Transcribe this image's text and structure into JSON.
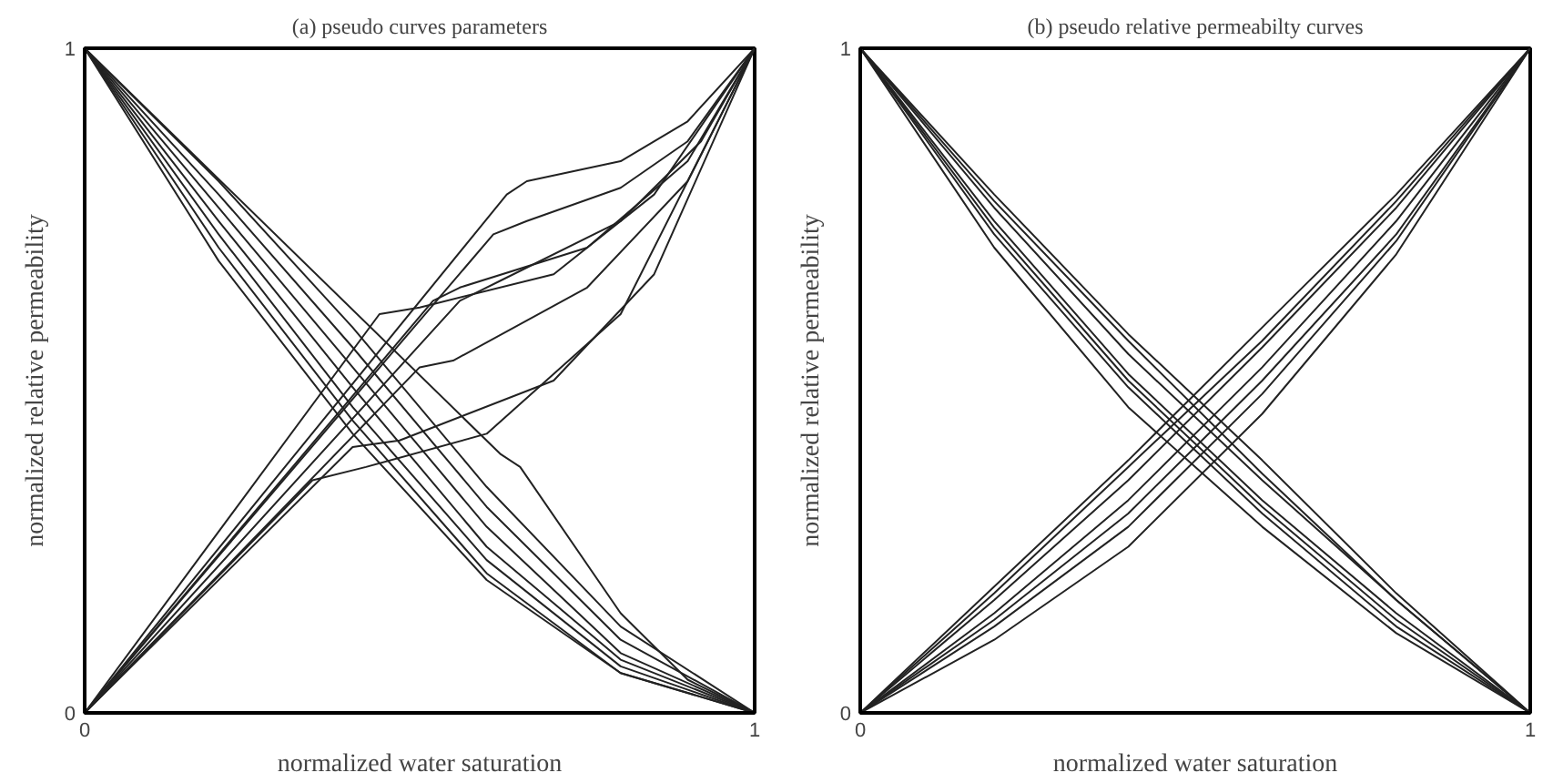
{
  "chart_data": [
    {
      "type": "line",
      "title": "(a) pseudo curves parameters",
      "xlabel": "normalized water saturation",
      "ylabel": "normalized relative permeability",
      "xlim": [
        0,
        1
      ],
      "ylim": [
        0,
        1
      ],
      "xticks": [
        0,
        1
      ],
      "yticks": [
        0,
        1
      ],
      "series": [
        {
          "color": "#222222",
          "x": [
            0,
            0.63,
            0.66,
            0.8,
            0.9,
            1
          ],
          "values": [
            0,
            0.78,
            0.8,
            0.83,
            0.89,
            1
          ]
        },
        {
          "color": "#222222",
          "x": [
            0,
            0.61,
            0.66,
            0.8,
            0.9,
            1
          ],
          "values": [
            0,
            0.72,
            0.74,
            0.79,
            0.86,
            1
          ]
        },
        {
          "color": "#222222",
          "x": [
            0,
            0.52,
            0.56,
            0.75,
            0.9,
            1
          ],
          "values": [
            0,
            0.62,
            0.64,
            0.7,
            0.83,
            1
          ]
        },
        {
          "color": "#222222",
          "x": [
            0,
            0.44,
            0.5,
            0.7,
            0.85,
            1
          ],
          "values": [
            0,
            0.6,
            0.61,
            0.66,
            0.78,
            1
          ]
        },
        {
          "color": "#222222",
          "x": [
            0,
            0.34,
            0.42,
            0.6,
            0.8,
            1
          ],
          "values": [
            0,
            0.35,
            0.37,
            0.42,
            0.6,
            1
          ]
        },
        {
          "color": "#222222",
          "x": [
            0,
            0.4,
            0.47,
            0.7,
            0.85,
            1
          ],
          "values": [
            0,
            0.4,
            0.41,
            0.5,
            0.66,
            1
          ]
        },
        {
          "color": "#222222",
          "x": [
            0,
            0.5,
            0.55,
            0.75,
            0.9,
            1
          ],
          "values": [
            0,
            0.52,
            0.53,
            0.64,
            0.8,
            1
          ]
        },
        {
          "color": "#222222",
          "x": [
            0,
            0.56,
            0.62,
            0.8,
            0.92,
            1
          ],
          "values": [
            0,
            0.62,
            0.65,
            0.74,
            0.86,
            1
          ]
        },
        {
          "color": "#222222",
          "x": [
            0,
            0.62,
            0.65,
            0.8,
            0.9,
            1
          ],
          "values": [
            1,
            0.39,
            0.37,
            0.15,
            0.05,
            0
          ]
        },
        {
          "color": "#222222",
          "x": [
            0,
            0.2,
            0.4,
            0.6,
            0.8,
            1
          ],
          "values": [
            1,
            0.78,
            0.55,
            0.31,
            0.11,
            0
          ]
        },
        {
          "color": "#222222",
          "x": [
            0,
            0.2,
            0.4,
            0.6,
            0.8,
            1
          ],
          "values": [
            1,
            0.76,
            0.52,
            0.28,
            0.09,
            0
          ]
        },
        {
          "color": "#222222",
          "x": [
            0,
            0.2,
            0.4,
            0.6,
            0.8,
            1
          ],
          "values": [
            1,
            0.74,
            0.49,
            0.25,
            0.08,
            0
          ]
        },
        {
          "color": "#222222",
          "x": [
            0,
            0.2,
            0.4,
            0.6,
            0.8,
            1
          ],
          "values": [
            1,
            0.72,
            0.46,
            0.23,
            0.07,
            0
          ]
        },
        {
          "color": "#222222",
          "x": [
            0,
            0.2,
            0.4,
            0.6,
            0.8,
            1
          ],
          "values": [
            1,
            0.7,
            0.44,
            0.21,
            0.06,
            0
          ]
        },
        {
          "color": "#222222",
          "x": [
            0,
            0.2,
            0.4,
            0.6,
            0.8,
            1
          ],
          "values": [
            1,
            0.8,
            0.58,
            0.34,
            0.13,
            0
          ]
        },
        {
          "color": "#222222",
          "x": [
            0,
            0.2,
            0.4,
            0.6,
            0.8,
            1
          ],
          "values": [
            1,
            0.68,
            0.42,
            0.2,
            0.06,
            0
          ]
        }
      ]
    },
    {
      "type": "line",
      "title": "(b) pseudo relative permeabilty curves",
      "xlabel": "normalized water saturation",
      "ylabel": "normalized relative permeability",
      "xlim": [
        0,
        1
      ],
      "ylim": [
        0,
        1
      ],
      "xticks": [
        0,
        1
      ],
      "yticks": [
        0,
        1
      ],
      "series": [
        {
          "color": "#222222",
          "x": [
            0,
            0.2,
            0.4,
            0.6,
            0.8,
            1
          ],
          "values": [
            0,
            0.19,
            0.38,
            0.58,
            0.78,
            1
          ]
        },
        {
          "color": "#222222",
          "x": [
            0,
            0.2,
            0.4,
            0.6,
            0.8,
            1
          ],
          "values": [
            0,
            0.17,
            0.35,
            0.55,
            0.76,
            1
          ]
        },
        {
          "color": "#222222",
          "x": [
            0,
            0.2,
            0.4,
            0.6,
            0.8,
            1
          ],
          "values": [
            0,
            0.15,
            0.32,
            0.52,
            0.74,
            1
          ]
        },
        {
          "color": "#222222",
          "x": [
            0,
            0.2,
            0.4,
            0.6,
            0.8,
            1
          ],
          "values": [
            0,
            0.13,
            0.28,
            0.48,
            0.71,
            1
          ]
        },
        {
          "color": "#222222",
          "x": [
            0,
            0.2,
            0.4,
            0.6,
            0.8,
            1
          ],
          "values": [
            0,
            0.11,
            0.25,
            0.45,
            0.69,
            1
          ]
        },
        {
          "color": "#222222",
          "x": [
            0,
            0.2,
            0.4,
            0.6,
            0.8,
            1
          ],
          "values": [
            0,
            0.18,
            0.37,
            0.56,
            0.77,
            1
          ]
        },
        {
          "color": "#222222",
          "x": [
            0,
            0.2,
            0.4,
            0.6,
            0.8,
            1
          ],
          "values": [
            0,
            0.14,
            0.3,
            0.5,
            0.72,
            1
          ]
        },
        {
          "color": "#222222",
          "x": [
            0,
            0.2,
            0.4,
            0.6,
            0.8,
            1
          ],
          "values": [
            1,
            0.78,
            0.57,
            0.38,
            0.18,
            0
          ]
        },
        {
          "color": "#222222",
          "x": [
            0,
            0.2,
            0.4,
            0.6,
            0.8,
            1
          ],
          "values": [
            1,
            0.76,
            0.54,
            0.35,
            0.17,
            0
          ]
        },
        {
          "color": "#222222",
          "x": [
            0,
            0.2,
            0.4,
            0.6,
            0.8,
            1
          ],
          "values": [
            1,
            0.74,
            0.51,
            0.32,
            0.15,
            0
          ]
        },
        {
          "color": "#222222",
          "x": [
            0,
            0.2,
            0.4,
            0.6,
            0.8,
            1
          ],
          "values": [
            1,
            0.72,
            0.49,
            0.3,
            0.13,
            0
          ]
        },
        {
          "color": "#222222",
          "x": [
            0,
            0.2,
            0.4,
            0.6,
            0.8,
            1
          ],
          "values": [
            1,
            0.7,
            0.46,
            0.28,
            0.12,
            0
          ]
        },
        {
          "color": "#222222",
          "x": [
            0,
            0.2,
            0.4,
            0.6,
            0.8,
            1
          ],
          "values": [
            1,
            0.77,
            0.56,
            0.36,
            0.17,
            0
          ]
        },
        {
          "color": "#222222",
          "x": [
            0,
            0.2,
            0.4,
            0.6,
            0.8,
            1
          ],
          "values": [
            1,
            0.73,
            0.5,
            0.31,
            0.14,
            0
          ]
        }
      ]
    }
  ]
}
